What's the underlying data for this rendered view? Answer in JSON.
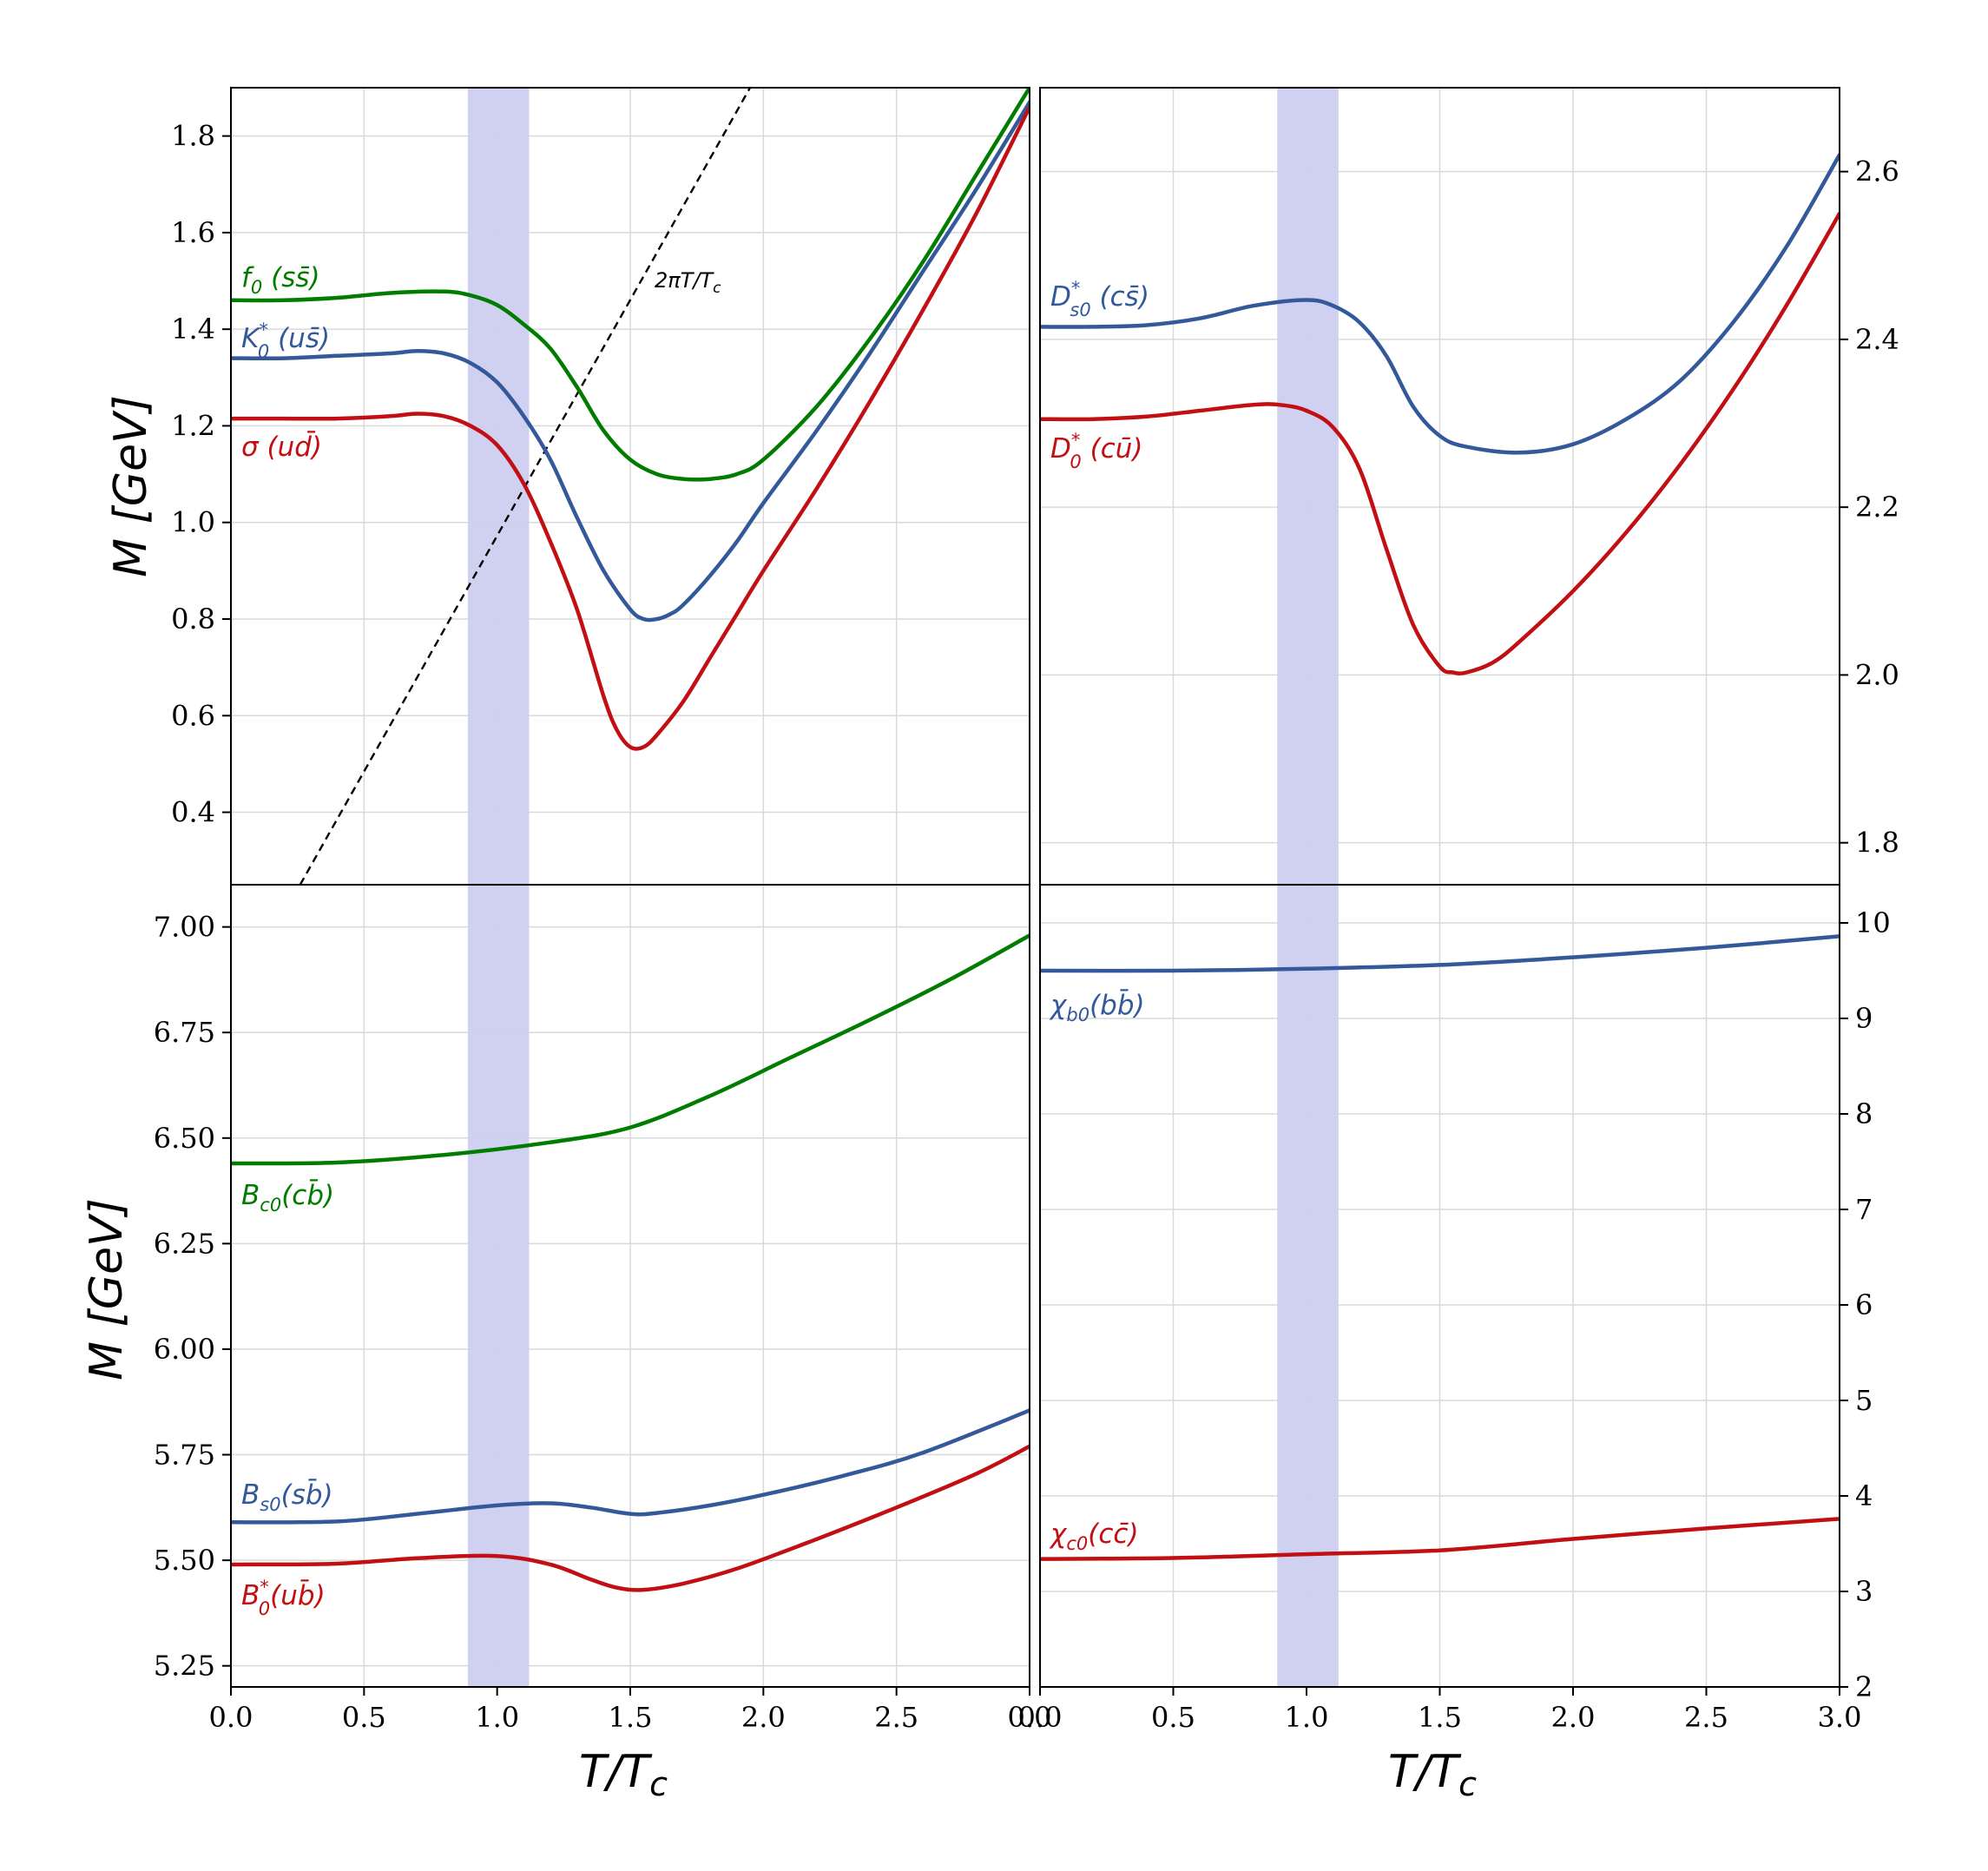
{
  "colors": {
    "green": "#007d00",
    "blue": "#34599a",
    "red": "#c20f13",
    "band": "#cdcff0",
    "grid": "#d9d9d9",
    "diagonal": "#000000"
  },
  "x_axis": {
    "title": "T/T",
    "title_sub": "c",
    "range": [
      0,
      3.0
    ],
    "ticks": [
      0,
      0.5,
      1.0,
      1.5,
      2.0,
      2.5,
      3.0
    ],
    "tick_labels_left": [
      "0.0",
      "0.5",
      "1.0",
      "1.5",
      "2.0",
      "2.5",
      "0.0"
    ],
    "tick_labels_right": [
      "0.0",
      "0.5",
      "1.0",
      "1.5",
      "2.0",
      "2.5",
      "3.0"
    ]
  },
  "y_axis": {
    "title": "M  [GeV]"
  },
  "transition_band": [
    0.89,
    1.12
  ],
  "chart_data": [
    {
      "type": "line",
      "panel": "top-left",
      "xlim": [
        0,
        3.0
      ],
      "ylim": [
        0.25,
        1.9
      ],
      "yaxis_side": "left",
      "yticks": [
        0.4,
        0.6,
        0.8,
        1.0,
        1.2,
        1.4,
        1.6,
        1.8
      ],
      "ytick_labels": [
        "0.4",
        "0.6",
        "0.8",
        "1.0",
        "1.2",
        "1.4",
        "1.6",
        "1.8"
      ],
      "reference_line": {
        "label": "2πT/T",
        "label_sub": "c",
        "x": [
          0.26,
          1.95
        ],
        "y": [
          0.25,
          1.9
        ]
      },
      "series": [
        {
          "name": "f (ss̄)",
          "label_main": "f",
          "label_sub": "0",
          "label_rest": "  (ss̄)",
          "color": "green",
          "x": [
            0,
            0.2,
            0.4,
            0.6,
            0.8,
            0.9,
            1.0,
            1.1,
            1.2,
            1.3,
            1.4,
            1.5,
            1.6,
            1.7,
            1.8,
            1.9,
            2.0,
            2.2,
            2.4,
            2.6,
            2.8,
            3.0
          ],
          "y": [
            1.46,
            1.46,
            1.465,
            1.475,
            1.478,
            1.47,
            1.45,
            1.41,
            1.36,
            1.28,
            1.19,
            1.13,
            1.1,
            1.09,
            1.09,
            1.1,
            1.13,
            1.24,
            1.38,
            1.54,
            1.72,
            1.9
          ]
        },
        {
          "name": "K (us̄)",
          "label_main": "K",
          "label_sup": "*",
          "label_sub": "0",
          "label_rest": "  (us̄)",
          "color": "blue",
          "x": [
            0,
            0.2,
            0.4,
            0.6,
            0.7,
            0.8,
            0.9,
            1.0,
            1.1,
            1.2,
            1.3,
            1.4,
            1.5,
            1.55,
            1.6,
            1.65,
            1.7,
            1.8,
            1.9,
            2.0,
            2.2,
            2.4,
            2.6,
            2.8,
            3.0
          ],
          "y": [
            1.34,
            1.34,
            1.345,
            1.35,
            1.355,
            1.35,
            1.33,
            1.29,
            1.22,
            1.13,
            1.01,
            0.9,
            0.82,
            0.8,
            0.8,
            0.81,
            0.83,
            0.89,
            0.96,
            1.04,
            1.19,
            1.35,
            1.52,
            1.69,
            1.87
          ]
        },
        {
          "name": "σ (ud̄)",
          "label_main": "σ",
          "label_rest": "  (ud̄)",
          "color": "red",
          "x": [
            0,
            0.2,
            0.4,
            0.6,
            0.7,
            0.8,
            0.9,
            1.0,
            1.1,
            1.2,
            1.3,
            1.4,
            1.45,
            1.5,
            1.55,
            1.6,
            1.7,
            1.8,
            1.9,
            2.0,
            2.2,
            2.4,
            2.6,
            2.8,
            3.0
          ],
          "y": [
            1.215,
            1.215,
            1.215,
            1.22,
            1.225,
            1.22,
            1.2,
            1.16,
            1.08,
            0.96,
            0.82,
            0.64,
            0.57,
            0.535,
            0.535,
            0.56,
            0.63,
            0.72,
            0.81,
            0.9,
            1.07,
            1.25,
            1.44,
            1.64,
            1.86
          ]
        }
      ]
    },
    {
      "type": "line",
      "panel": "top-right",
      "xlim": [
        0,
        3.0
      ],
      "ylim": [
        1.75,
        2.7
      ],
      "yaxis_side": "right",
      "yticks": [
        1.8,
        2.0,
        2.2,
        2.4,
        2.6
      ],
      "ytick_labels": [
        "1.8",
        "2.0",
        "2.2",
        "2.4",
        "2.6"
      ],
      "series": [
        {
          "name": "D (cs̄)",
          "label_main": "D",
          "label_sup": "*",
          "label_sub": "s0",
          "label_rest": "  (cs̄)",
          "color": "blue",
          "x": [
            0,
            0.2,
            0.4,
            0.6,
            0.8,
            1.0,
            1.1,
            1.2,
            1.3,
            1.4,
            1.5,
            1.6,
            1.8,
            2.0,
            2.2,
            2.4,
            2.6,
            2.8,
            3.0
          ],
          "y": [
            2.415,
            2.415,
            2.417,
            2.425,
            2.44,
            2.447,
            2.44,
            2.42,
            2.38,
            2.32,
            2.285,
            2.272,
            2.265,
            2.275,
            2.305,
            2.35,
            2.42,
            2.51,
            2.62
          ]
        },
        {
          "name": "D (cū)",
          "label_main": "D",
          "label_sup": "*",
          "label_sub": "0",
          "label_rest": "  (cū)",
          "color": "red",
          "x": [
            0,
            0.2,
            0.4,
            0.6,
            0.8,
            0.9,
            1.0,
            1.1,
            1.2,
            1.3,
            1.4,
            1.5,
            1.55,
            1.6,
            1.7,
            1.8,
            2.0,
            2.2,
            2.4,
            2.6,
            2.8,
            3.0
          ],
          "y": [
            2.305,
            2.305,
            2.308,
            2.315,
            2.322,
            2.322,
            2.315,
            2.295,
            2.245,
            2.15,
            2.06,
            2.01,
            2.003,
            2.003,
            2.015,
            2.04,
            2.1,
            2.17,
            2.25,
            2.34,
            2.44,
            2.55
          ]
        }
      ]
    },
    {
      "type": "line",
      "panel": "bottom-left",
      "xlim": [
        0,
        3.0
      ],
      "ylim": [
        5.2,
        7.1
      ],
      "yaxis_side": "left",
      "yticks": [
        5.25,
        5.5,
        5.75,
        6.0,
        6.25,
        6.5,
        6.75,
        7.0
      ],
      "ytick_labels": [
        "5.25",
        "5.50",
        "5.75",
        "6.00",
        "6.25",
        "6.50",
        "6.75",
        "7.00"
      ],
      "series": [
        {
          "name": "B (cb̄)",
          "label_main": "B",
          "label_sub": "c0",
          "label_rest": "(cb̄)",
          "color": "green",
          "x": [
            0,
            0.4,
            0.8,
            1.2,
            1.5,
            1.8,
            2.1,
            2.4,
            2.7,
            3.0
          ],
          "y": [
            6.44,
            6.442,
            6.46,
            6.49,
            6.525,
            6.6,
            6.69,
            6.78,
            6.875,
            6.98
          ]
        },
        {
          "name": "B (sb̄)",
          "label_main": "B",
          "label_sub": "s0",
          "label_rest": "(sb̄)",
          "color": "blue",
          "x": [
            0,
            0.4,
            0.7,
            1.0,
            1.2,
            1.35,
            1.5,
            1.6,
            1.8,
            2.0,
            2.3,
            2.6,
            3.0
          ],
          "y": [
            5.59,
            5.592,
            5.61,
            5.63,
            5.635,
            5.625,
            5.61,
            5.612,
            5.63,
            5.655,
            5.7,
            5.755,
            5.855
          ]
        },
        {
          "name": "B (ub̄)",
          "label_main": "B",
          "label_sup": "*",
          "label_sub": "0",
          "label_rest": "(ub̄)",
          "color": "red",
          "x": [
            0,
            0.4,
            0.7,
            1.0,
            1.2,
            1.35,
            1.45,
            1.55,
            1.7,
            1.9,
            2.2,
            2.5,
            2.8,
            3.0
          ],
          "y": [
            5.49,
            5.492,
            5.505,
            5.51,
            5.49,
            5.455,
            5.435,
            5.43,
            5.445,
            5.48,
            5.55,
            5.625,
            5.705,
            5.77
          ]
        }
      ]
    },
    {
      "type": "line",
      "panel": "bottom-right",
      "xlim": [
        0,
        3.0
      ],
      "ylim": [
        2,
        10.4
      ],
      "yaxis_side": "right",
      "yticks": [
        2,
        3,
        4,
        5,
        6,
        7,
        8,
        9,
        10
      ],
      "ytick_labels": [
        "2",
        "3",
        "4",
        "5",
        "6",
        "7",
        "8",
        "9",
        "10"
      ],
      "series": [
        {
          "name": "χ (bb̄)",
          "label_main": "χ",
          "label_sub": "b0",
          "label_rest": "(bb̄)",
          "color": "blue",
          "x": [
            0,
            0.5,
            1.0,
            1.5,
            2.0,
            2.5,
            3.0
          ],
          "y": [
            9.5,
            9.5,
            9.52,
            9.56,
            9.64,
            9.74,
            9.86
          ]
        },
        {
          "name": "χ (cc̄)",
          "label_main": "χ",
          "label_sub": "c0",
          "label_rest": "(cc̄)",
          "color": "red",
          "x": [
            0,
            0.5,
            1.0,
            1.5,
            2.0,
            2.5,
            3.0
          ],
          "y": [
            3.34,
            3.35,
            3.39,
            3.43,
            3.55,
            3.66,
            3.76
          ]
        }
      ]
    }
  ]
}
